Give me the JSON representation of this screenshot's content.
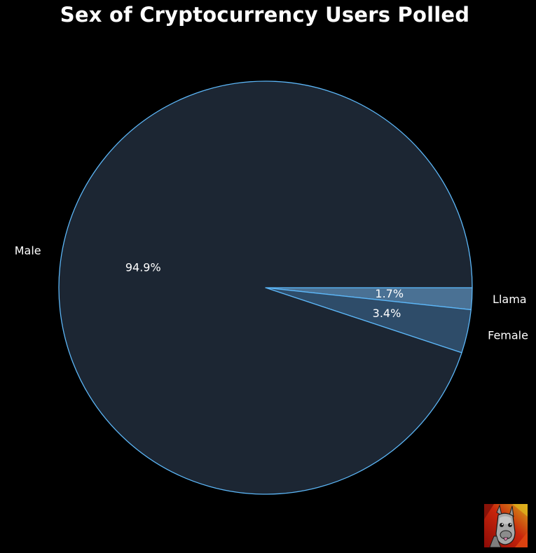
{
  "chart_data": {
    "type": "pie",
    "title": "Sex of Cryptocurrency Users Polled",
    "categories": [
      "Llama",
      "Female",
      "Male"
    ],
    "values": [
      1.7,
      3.4,
      94.9
    ],
    "value_labels": [
      "1.7%",
      "3.4%",
      "94.9%"
    ],
    "unit": "%",
    "start_angle_deg": 0,
    "direction": "clockwise",
    "colors": [
      "#4a7194",
      "#2e4c69",
      "#1c2633"
    ],
    "edge_color": "#5cb6f7",
    "background": "#000000",
    "text_color": "#ffffff"
  },
  "logo": {
    "icon": "llama-avatar-icon"
  }
}
